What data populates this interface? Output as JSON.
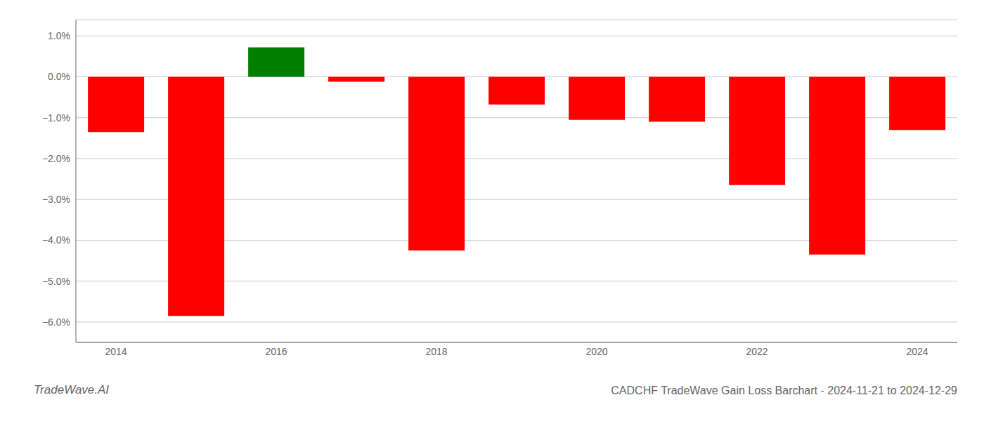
{
  "chart_data": {
    "type": "bar",
    "title": "CADCHF TradeWave Gain Loss Barchart - 2024-11-21 to 2024-12-29",
    "annotations": [
      "TradeWave.AI"
    ],
    "categories": [
      "2014",
      null,
      "2016",
      null,
      "2018",
      null,
      "2020",
      null,
      "2022",
      null,
      "2024"
    ],
    "values": [
      -1.35,
      -5.85,
      0.72,
      -0.12,
      -4.25,
      -0.68,
      -1.05,
      -1.1,
      -2.65,
      -4.35,
      -1.3
    ],
    "colors": [
      "#ff0000",
      "#ff0000",
      "#008000",
      "#ff0000",
      "#ff0000",
      "#ff0000",
      "#ff0000",
      "#ff0000",
      "#ff0000",
      "#ff0000",
      "#ff0000"
    ],
    "ylim": [
      -6.5,
      1.4
    ],
    "yticks": [
      {
        "value": 1.0,
        "label": "1.0%"
      },
      {
        "value": 0.0,
        "label": "0.0%"
      },
      {
        "value": -1.0,
        "label": "−1.0%"
      },
      {
        "value": -2.0,
        "label": "−2.0%"
      },
      {
        "value": -3.0,
        "label": "−3.0%"
      },
      {
        "value": -4.0,
        "label": "−4.0%"
      },
      {
        "value": -5.0,
        "label": "−5.0%"
      },
      {
        "value": -6.0,
        "label": "−6.0%"
      }
    ],
    "grid": true
  }
}
